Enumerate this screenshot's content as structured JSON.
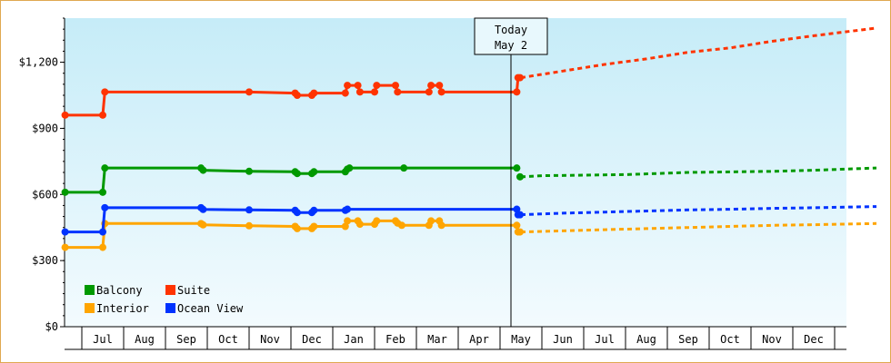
{
  "chart_data": {
    "type": "line",
    "title": "",
    "xlabel": "",
    "ylabel": "",
    "y_ticks": [
      "$0",
      "$300",
      "$600",
      "$900",
      "$1,200"
    ],
    "y_tick_values": [
      0,
      300,
      600,
      900,
      1200
    ],
    "ylim": [
      0,
      1400
    ],
    "x_months": [
      "Jul",
      "Aug",
      "Sep",
      "Oct",
      "Nov",
      "Dec",
      "Jan",
      "Feb",
      "Mar",
      "Apr",
      "May",
      "Jun",
      "Jul",
      "Aug",
      "Sep",
      "Oct",
      "Nov",
      "Dec"
    ],
    "today_marker": {
      "line1": "Today",
      "line2": "May 2",
      "x": 10.0
    },
    "grid": false,
    "legend_position": "bottom-left",
    "series": [
      {
        "name": "Balcony",
        "color": "#009900",
        "points": [
          [
            -0.9,
            610
          ],
          [
            0.0,
            610
          ],
          [
            0.05,
            720
          ],
          [
            2.35,
            720
          ],
          [
            2.4,
            710
          ],
          [
            3.5,
            705
          ],
          [
            4.6,
            703
          ],
          [
            4.65,
            695
          ],
          [
            5.0,
            695
          ],
          [
            5.05,
            703
          ],
          [
            5.8,
            703
          ],
          [
            5.85,
            715
          ],
          [
            5.9,
            720
          ],
          [
            7.2,
            720
          ],
          [
            9.9,
            720
          ]
        ],
        "forecast": [
          [
            10.0,
            680
          ],
          [
            10.5,
            685
          ],
          [
            12.5,
            690
          ],
          [
            14.0,
            700
          ],
          [
            16.0,
            705
          ],
          [
            17.0,
            710
          ],
          [
            18.5,
            720
          ]
        ]
      },
      {
        "name": "Suite",
        "color": "#ff3300",
        "points": [
          [
            -0.9,
            960
          ],
          [
            0.0,
            960
          ],
          [
            0.05,
            1065
          ],
          [
            3.5,
            1065
          ],
          [
            4.6,
            1060
          ],
          [
            4.65,
            1050
          ],
          [
            5.0,
            1050
          ],
          [
            5.05,
            1060
          ],
          [
            5.8,
            1060
          ],
          [
            5.85,
            1095
          ],
          [
            6.1,
            1095
          ],
          [
            6.15,
            1065
          ],
          [
            6.5,
            1065
          ],
          [
            6.55,
            1095
          ],
          [
            7.0,
            1095
          ],
          [
            7.05,
            1065
          ],
          [
            7.8,
            1065
          ],
          [
            7.85,
            1095
          ],
          [
            8.05,
            1095
          ],
          [
            8.1,
            1065
          ],
          [
            9.9,
            1065
          ],
          [
            9.93,
            1130
          ]
        ],
        "forecast": [
          [
            10.0,
            1130
          ],
          [
            11.0,
            1160
          ],
          [
            12.0,
            1190
          ],
          [
            13.0,
            1215
          ],
          [
            14.0,
            1245
          ],
          [
            15.0,
            1265
          ],
          [
            16.0,
            1295
          ],
          [
            17.0,
            1320
          ],
          [
            18.5,
            1355
          ]
        ]
      },
      {
        "name": "Interior",
        "color": "#ffa500",
        "points": [
          [
            -0.9,
            360
          ],
          [
            0.0,
            360
          ],
          [
            0.05,
            468
          ],
          [
            2.35,
            468
          ],
          [
            2.4,
            462
          ],
          [
            3.5,
            458
          ],
          [
            4.6,
            455
          ],
          [
            4.65,
            445
          ],
          [
            5.0,
            445
          ],
          [
            5.05,
            455
          ],
          [
            5.8,
            455
          ],
          [
            5.85,
            480
          ],
          [
            6.1,
            480
          ],
          [
            6.15,
            465
          ],
          [
            6.5,
            465
          ],
          [
            6.55,
            480
          ],
          [
            7.0,
            480
          ],
          [
            7.05,
            470
          ],
          [
            7.15,
            460
          ],
          [
            7.8,
            460
          ],
          [
            7.85,
            480
          ],
          [
            8.05,
            480
          ],
          [
            8.1,
            460
          ],
          [
            9.9,
            460
          ],
          [
            9.93,
            430
          ]
        ],
        "forecast": [
          [
            10.0,
            430
          ],
          [
            11.0,
            435
          ],
          [
            12.0,
            440
          ],
          [
            13.0,
            445
          ],
          [
            14.0,
            450
          ],
          [
            15.0,
            455
          ],
          [
            16.0,
            460
          ],
          [
            17.0,
            463
          ],
          [
            18.5,
            468
          ]
        ]
      },
      {
        "name": "Ocean View",
        "color": "#0033ff",
        "points": [
          [
            -0.9,
            430
          ],
          [
            0.0,
            430
          ],
          [
            0.05,
            540
          ],
          [
            2.35,
            540
          ],
          [
            2.4,
            532
          ],
          [
            3.5,
            530
          ],
          [
            4.6,
            528
          ],
          [
            4.65,
            518
          ],
          [
            5.0,
            518
          ],
          [
            5.05,
            528
          ],
          [
            5.8,
            528
          ],
          [
            5.85,
            533
          ],
          [
            9.9,
            533
          ],
          [
            9.93,
            508
          ]
        ],
        "forecast": [
          [
            10.0,
            508
          ],
          [
            11.0,
            515
          ],
          [
            12.0,
            520
          ],
          [
            13.0,
            525
          ],
          [
            14.0,
            530
          ],
          [
            15.0,
            533
          ],
          [
            16.0,
            537
          ],
          [
            17.0,
            540
          ],
          [
            18.5,
            545
          ]
        ]
      }
    ]
  },
  "legend": [
    {
      "name": "Balcony",
      "color": "#009900"
    },
    {
      "name": "Suite",
      "color": "#ff3300"
    },
    {
      "name": "Interior",
      "color": "#ffa500"
    },
    {
      "name": "Ocean View",
      "color": "#0033ff"
    }
  ]
}
